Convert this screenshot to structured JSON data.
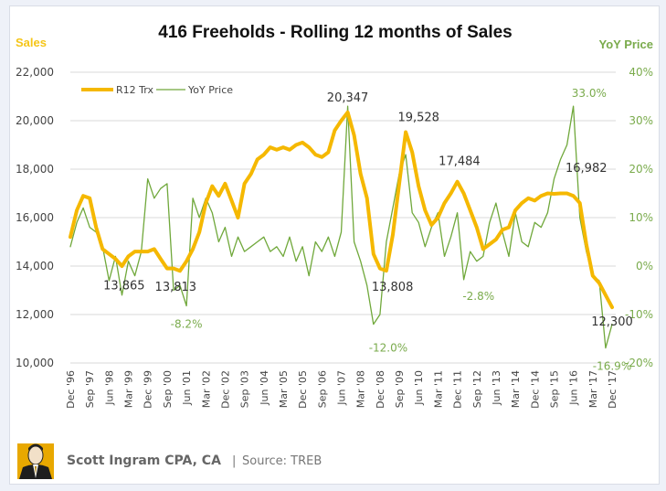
{
  "chart_data": {
    "type": "line",
    "title": "416 Freeholds - Rolling 12 months of Sales",
    "ylabel": "Sales",
    "ylabel_right": "YoY Price",
    "ylim": [
      10000,
      22000
    ],
    "ylim_right": [
      -20,
      40
    ],
    "yticks": [
      "10,000",
      "12,000",
      "14,000",
      "16,000",
      "18,000",
      "20,000",
      "22,000"
    ],
    "yticks_right": [
      "-20%",
      "-10%",
      "0%",
      "10%",
      "20%",
      "30%",
      "40%"
    ],
    "grid": true,
    "legend_position": "top-left",
    "x_tick_labels": [
      "Dec '96",
      "Sep '97",
      "Jun '98",
      "Mar '99",
      "Dec '99",
      "Sep '00",
      "Jun '01",
      "Mar '02",
      "Dec '02",
      "Sep '03",
      "Jun '04",
      "Mar '05",
      "Dec '05",
      "Sep '06",
      "Jun '07",
      "Mar '08",
      "Dec '08",
      "Sep '09",
      "Jun '10",
      "Mar '11",
      "Dec '11",
      "Sep '12",
      "Jun '13",
      "Mar '14",
      "Dec '14",
      "Sep '15",
      "Jun '16",
      "Mar '17",
      "Dec '17"
    ],
    "x_frequency": "quarterly, Dec 1996 to Dec 2017",
    "series": [
      {
        "name": "R12 Trx",
        "axis": "left",
        "color": "#f5b800",
        "values": [
          15200,
          16300,
          16900,
          16800,
          15600,
          14700,
          14500,
          14300,
          14000,
          14400,
          14600,
          14600,
          14600,
          14700,
          14300,
          13900,
          13900,
          13800,
          14200,
          14700,
          15400,
          16600,
          17300,
          16900,
          17400,
          16700,
          16000,
          17400,
          17800,
          18400,
          18600,
          18900,
          18800,
          18900,
          18800,
          19000,
          19100,
          18900,
          18600,
          18500,
          18700,
          19600,
          20000,
          20347,
          19400,
          17800,
          16800,
          14500,
          13900,
          13808,
          15300,
          17400,
          19528,
          18700,
          17300,
          16300,
          15700,
          16000,
          16600,
          17000,
          17484,
          17000,
          16300,
          15600,
          14700,
          14900,
          15100,
          15500,
          15600,
          16300,
          16600,
          16800,
          16700,
          16900,
          17000,
          16982,
          17000,
          17000,
          16900,
          16600,
          14900,
          13600,
          13300,
          12800,
          12300
        ]
      },
      {
        "name": "YoY Price",
        "axis": "right",
        "color": "#70a83b",
        "values": [
          4,
          9,
          12,
          8,
          7,
          4,
          -3,
          2,
          -6,
          1,
          -2,
          3,
          18,
          14,
          16,
          17,
          -5,
          -4,
          -8.2,
          14,
          10,
          14,
          11,
          5,
          8,
          2,
          6,
          3,
          4,
          5,
          6,
          3,
          4,
          2,
          6,
          1,
          4,
          -2,
          5,
          3,
          6,
          2,
          7,
          33,
          5,
          1,
          -4,
          -12,
          -10,
          5,
          12,
          19,
          23,
          11,
          9,
          4,
          8,
          11,
          2,
          6,
          11,
          -2.8,
          3,
          1,
          2,
          9,
          13,
          7,
          2,
          11,
          5,
          4,
          9,
          8,
          11,
          18,
          22,
          25,
          33,
          10,
          3,
          -2,
          -3,
          -16.9,
          -12
        ]
      }
    ],
    "annotations": [
      {
        "series": "R12 Trx",
        "label": "13,865",
        "date": "Jan '99",
        "value": 13865
      },
      {
        "series": "R12 Trx",
        "label": "13,813",
        "date": "Jan '01",
        "value": 13813
      },
      {
        "series": "R12 Trx",
        "label": "20,347",
        "date": "Sep '07",
        "value": 20347
      },
      {
        "series": "R12 Trx",
        "label": "13,808",
        "date": "May '09",
        "value": 13808
      },
      {
        "series": "R12 Trx",
        "label": "19,528",
        "date": "Jun '10",
        "value": 19528
      },
      {
        "series": "R12 Trx",
        "label": "17,484",
        "date": "Jan '12",
        "value": 17484
      },
      {
        "series": "R12 Trx",
        "label": "16,982",
        "date": "Dec '16",
        "value": 16982
      },
      {
        "series": "R12 Trx",
        "label": "12,300",
        "date": "Dec '17",
        "value": 12300
      },
      {
        "series": "YoY Price",
        "label": "-8.2%",
        "date": "Jun '01",
        "value": -8.2
      },
      {
        "series": "YoY Price",
        "label": "-12.0%",
        "date": "Mar '09",
        "value": -12.0
      },
      {
        "series": "YoY Price",
        "label": "-2.8%",
        "date": "Sep '12",
        "value": -2.8
      },
      {
        "series": "YoY Price",
        "label": "33.0%",
        "date": "Mar '17",
        "value": 33.0
      },
      {
        "series": "YoY Price",
        "label": "-16.9%",
        "date": "Dec '17",
        "value": -16.9
      }
    ]
  },
  "legend": {
    "items": [
      {
        "label": "R12 Trx",
        "color": "#f5b800"
      },
      {
        "label": "YoY Price",
        "color": "#70a83b"
      }
    ]
  },
  "footer": {
    "author": "Scott Ingram CPA, CA",
    "separator": "|",
    "source": "Source: TREB",
    "avatar_icon": "author-portrait-icon"
  }
}
